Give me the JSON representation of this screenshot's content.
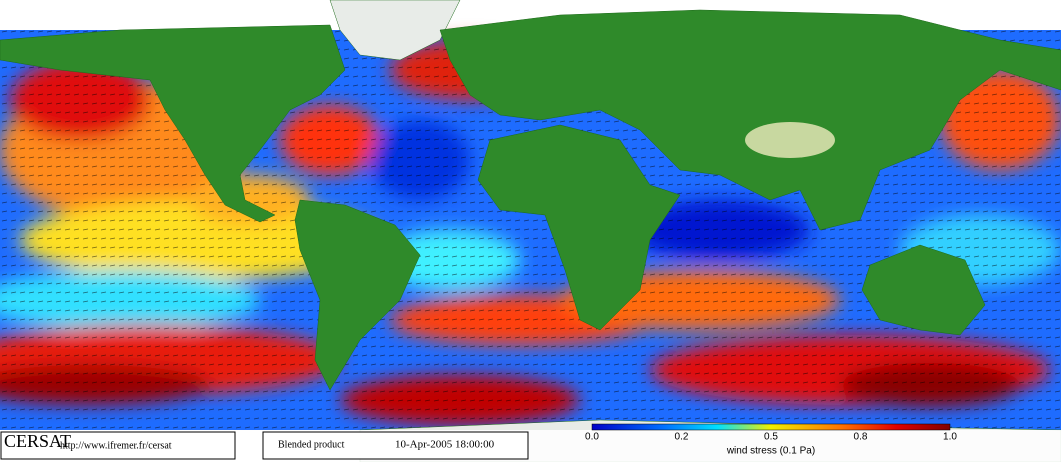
{
  "footer": {
    "logo": "CERSAT",
    "url": "http://www.ifremer.fr/cersat",
    "product": "Blended product",
    "datetime": "10-Apr-2005 18:00:00"
  },
  "colorbar": {
    "ticks": [
      "0.0",
      "0.2",
      "0.5",
      "0.8",
      "1.0"
    ],
    "label": "wind stress (0.1 Pa)"
  }
}
